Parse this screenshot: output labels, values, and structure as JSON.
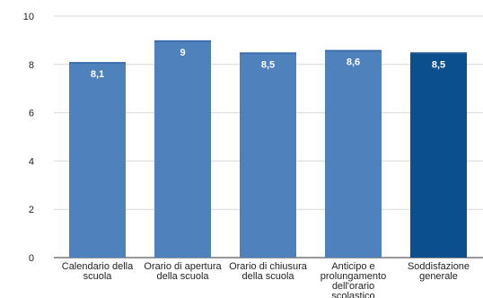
{
  "chart_data": {
    "type": "bar",
    "title": "",
    "xlabel": "",
    "ylabel": "",
    "categories": [
      [
        "Calendario della",
        "scuola"
      ],
      [
        "Orario di apertura",
        "della scuola"
      ],
      [
        "Orario di chiusura",
        "della scuola"
      ],
      [
        "Anticipo e",
        "prolungamento",
        "dell'orario",
        "scolastico"
      ],
      [
        "Soddisfazione",
        "generale"
      ]
    ],
    "values": [
      8.1,
      9,
      8.5,
      8.6,
      8.5
    ],
    "value_labels": [
      "8,1",
      "9",
      "8,5",
      "8,6",
      "8,5"
    ],
    "bar_colors": [
      "#4f81bd",
      "#4f81bd",
      "#4f81bd",
      "#4f81bd",
      "#0b4f8e"
    ],
    "ylim": [
      0,
      10
    ],
    "yticks": [
      0,
      2,
      4,
      6,
      8,
      10
    ],
    "grid": true,
    "legend": "none"
  },
  "colors": {
    "grid": "#d9d9d9",
    "axis": "#333333",
    "bar_default": "#4f81bd",
    "bar_highlight": "#0b4f8e"
  }
}
